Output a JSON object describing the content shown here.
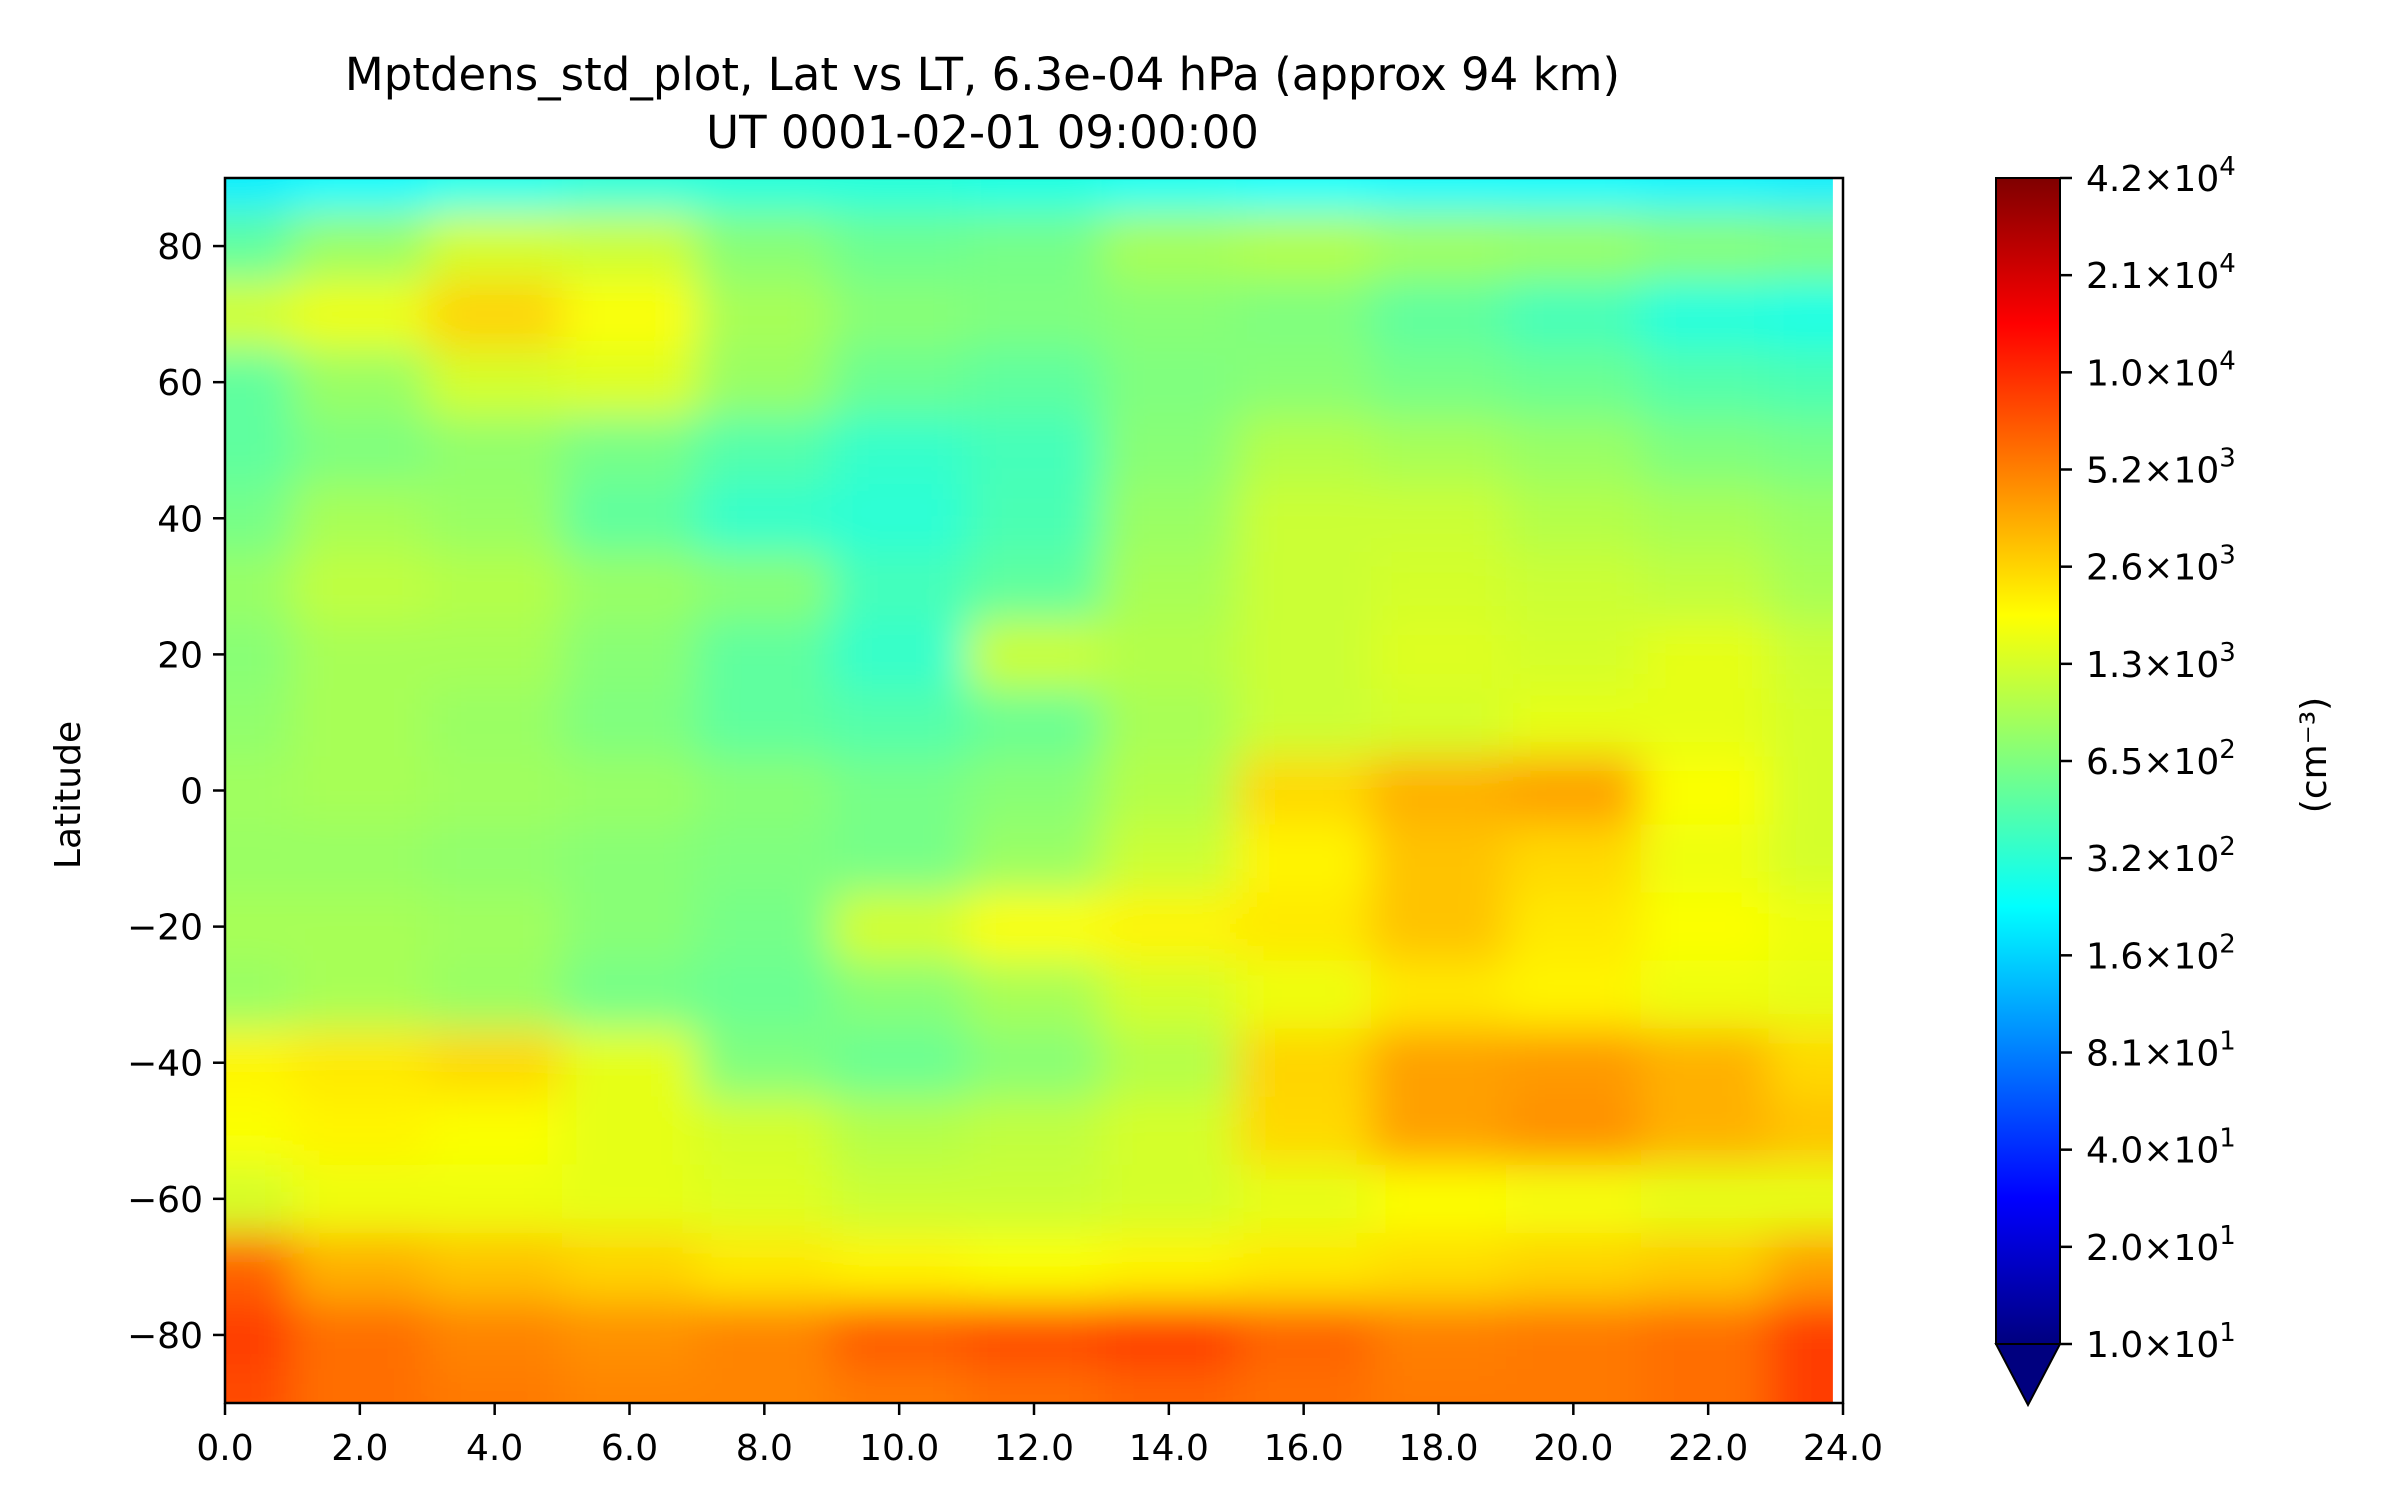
{
  "chart_data": {
    "type": "heatmap",
    "title": "Mptdens_std_plot, Lat vs LT, 6.3e-04 hPa (approx 94 km)",
    "subtitle": "UT 0001-02-01 09:00:00",
    "xlabel": "",
    "ylabel": "Latitude",
    "xlim": [
      0,
      24
    ],
    "ylim": [
      -90,
      90
    ],
    "x_ticks": [
      "0.0",
      "2.0",
      "4.0",
      "6.0",
      "8.0",
      "10.0",
      "12.0",
      "14.0",
      "16.0",
      "18.0",
      "20.0",
      "22.0",
      "24.0"
    ],
    "y_ticks": [
      -80,
      -60,
      -40,
      -20,
      0,
      20,
      40,
      60,
      80
    ],
    "colorbar": {
      "label": "(cm⁻³)",
      "scale": "log",
      "colormap": "jet",
      "extend": "min",
      "range": [
        10,
        42000
      ],
      "ticks": [
        {
          "value": 10,
          "mantissa": "1.0",
          "exponent": "1"
        },
        {
          "value": 20,
          "mantissa": "2.0",
          "exponent": "1"
        },
        {
          "value": 40,
          "mantissa": "4.0",
          "exponent": "1"
        },
        {
          "value": 81,
          "mantissa": "8.1",
          "exponent": "1"
        },
        {
          "value": 160,
          "mantissa": "1.6",
          "exponent": "2"
        },
        {
          "value": 320,
          "mantissa": "3.2",
          "exponent": "2"
        },
        {
          "value": 650,
          "mantissa": "6.5",
          "exponent": "2"
        },
        {
          "value": 1300,
          "mantissa": "1.3",
          "exponent": "3"
        },
        {
          "value": 2600,
          "mantissa": "2.6",
          "exponent": "3"
        },
        {
          "value": 5200,
          "mantissa": "5.2",
          "exponent": "3"
        },
        {
          "value": 10000,
          "mantissa": "1.0",
          "exponent": "4"
        },
        {
          "value": 21000,
          "mantissa": "2.1",
          "exponent": "4"
        },
        {
          "value": 42000,
          "mantissa": "4.2",
          "exponent": "4"
        }
      ],
      "colors": [
        "#00007f",
        "#0000ff",
        "#007fff",
        "#00ffff",
        "#7fff7f",
        "#ffff00",
        "#ff7f00",
        "#ff0000",
        "#7f0000"
      ]
    },
    "grid": false,
    "lt": [
      0,
      2,
      4,
      6,
      8,
      10,
      12,
      14,
      16,
      18,
      20,
      22,
      23.8
    ],
    "lat": [
      90,
      80,
      70,
      60,
      50,
      40,
      30,
      20,
      10,
      0,
      -10,
      -20,
      -30,
      -40,
      -50,
      -60,
      -70,
      -80,
      -90
    ],
    "values": [
      [
        200,
        220,
        260,
        300,
        300,
        300,
        280,
        250,
        230,
        220,
        220,
        210,
        200
      ],
      [
        500,
        800,
        1300,
        1200,
        700,
        560,
        600,
        900,
        1000,
        850,
        800,
        700,
        650
      ],
      [
        1300,
        1600,
        2600,
        1800,
        900,
        700,
        650,
        700,
        650,
        500,
        400,
        300,
        280
      ],
      [
        500,
        800,
        1300,
        1400,
        800,
        550,
        500,
        650,
        700,
        600,
        550,
        450,
        420
      ],
      [
        500,
        650,
        750,
        600,
        450,
        350,
        400,
        700,
        1000,
        900,
        800,
        650,
        600
      ],
      [
        600,
        900,
        800,
        500,
        350,
        320,
        420,
        800,
        1200,
        1200,
        1000,
        900,
        800
      ],
      [
        800,
        1100,
        1000,
        800,
        700,
        400,
        500,
        900,
        1200,
        1300,
        1200,
        1100,
        900
      ],
      [
        700,
        900,
        900,
        700,
        500,
        350,
        1200,
        1000,
        1200,
        1400,
        1300,
        1500,
        1200
      ],
      [
        750,
        900,
        800,
        650,
        500,
        450,
        550,
        900,
        1200,
        1300,
        1500,
        1500,
        1300
      ],
      [
        850,
        900,
        850,
        800,
        700,
        600,
        700,
        1000,
        2500,
        3500,
        4000,
        1800,
        1300
      ],
      [
        800,
        800,
        750,
        700,
        650,
        600,
        800,
        1200,
        2000,
        3000,
        2500,
        1600,
        1300
      ],
      [
        900,
        900,
        850,
        700,
        600,
        1300,
        1800,
        2000,
        2200,
        3000,
        2200,
        1800,
        1600
      ],
      [
        800,
        900,
        800,
        600,
        550,
        700,
        900,
        1300,
        1600,
        2200,
        2000,
        1600,
        1500
      ],
      [
        2000,
        2200,
        2500,
        1500,
        650,
        550,
        700,
        1000,
        2600,
        4000,
        4200,
        3500,
        2500
      ],
      [
        1800,
        2000,
        1800,
        1500,
        1300,
        1000,
        1100,
        1300,
        2500,
        4000,
        4500,
        3500,
        3000
      ],
      [
        1300,
        1600,
        1600,
        1500,
        1400,
        1200,
        1200,
        1300,
        1500,
        1800,
        1700,
        1500,
        1500
      ],
      [
        6500,
        3500,
        3000,
        2600,
        2200,
        2000,
        1800,
        2000,
        2200,
        2400,
        2600,
        2800,
        4000
      ],
      [
        9000,
        6000,
        5000,
        4500,
        5000,
        7000,
        8000,
        9000,
        6500,
        5200,
        5500,
        6000,
        9000
      ],
      [
        8000,
        6000,
        5500,
        5000,
        5000,
        5500,
        6000,
        6500,
        6000,
        5500,
        5500,
        6000,
        9000
      ]
    ]
  }
}
